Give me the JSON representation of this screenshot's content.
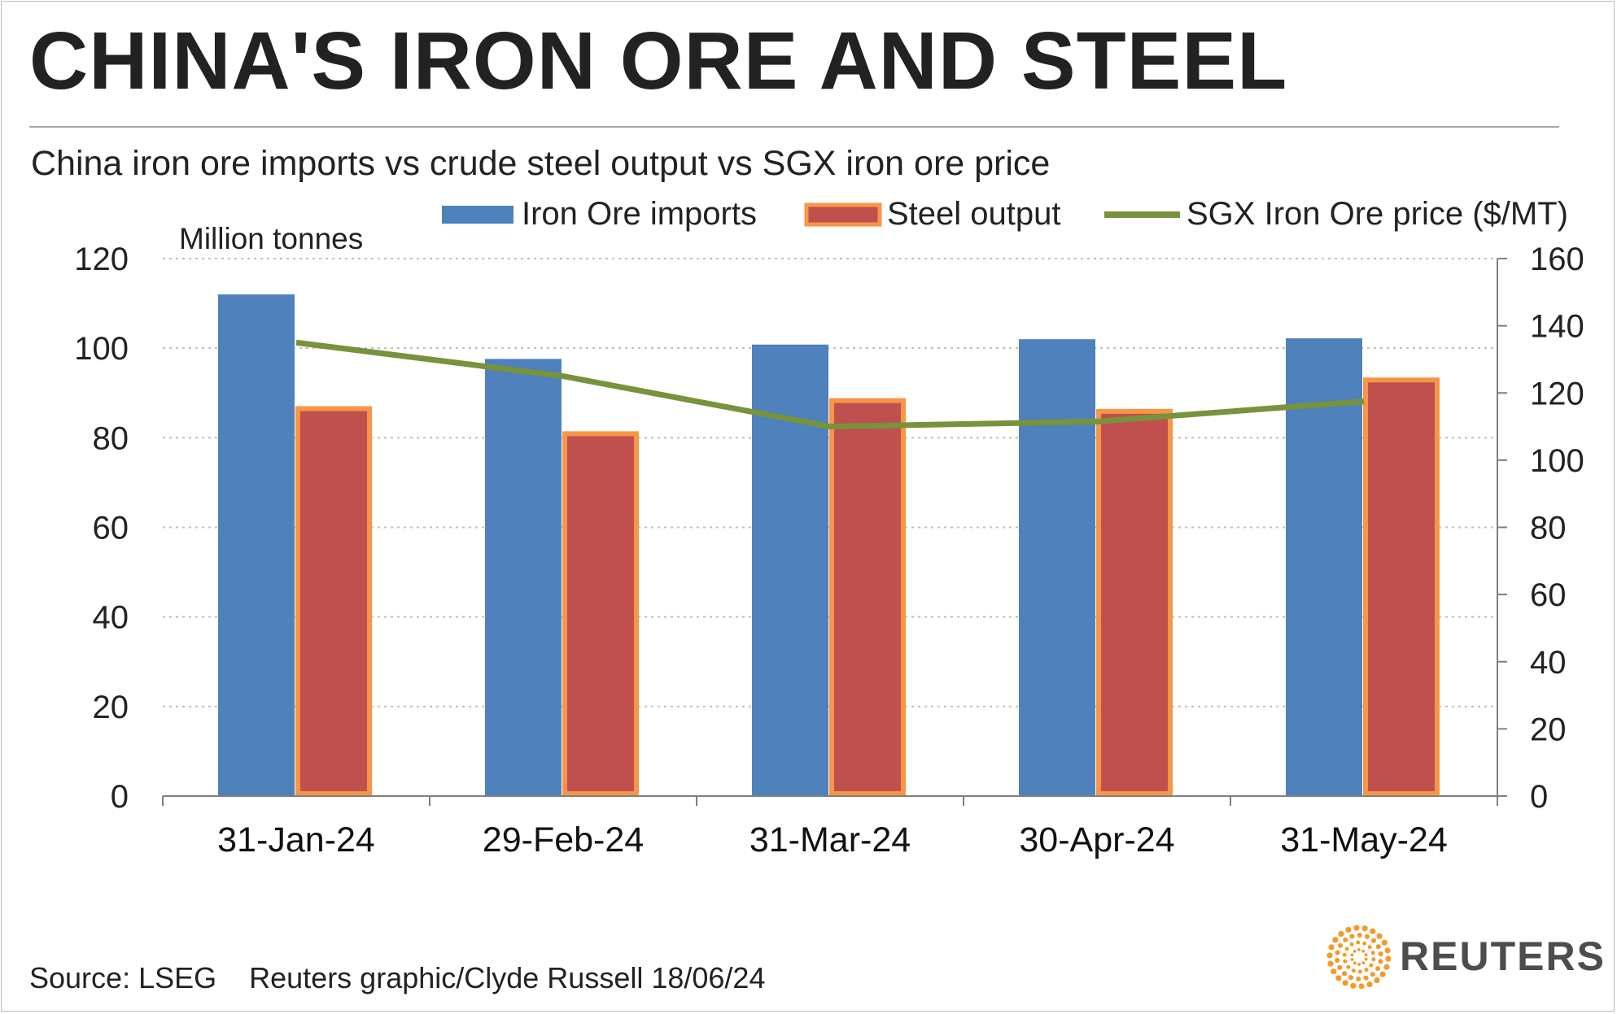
{
  "header": {
    "title": "CHINA'S IRON ORE AND STEEL",
    "subtitle": "China iron ore imports vs crude steel output vs SGX iron ore price"
  },
  "footer": {
    "source": "Source: LSEG    Reuters graphic/Clyde Russell 18/06/24",
    "brand": "REUTERS"
  },
  "colors": {
    "imports": "#4f81bd",
    "steel_fill": "#c0504d",
    "steel_border": "#f79646",
    "price": "#77933c",
    "grid": "#bfbfbf",
    "axis": "#7f7f7f"
  },
  "icons": {
    "logo": "reuters-dots-logo-icon"
  },
  "chart_data": {
    "type": "bar",
    "title": "China iron ore imports vs crude steel output vs SGX iron ore price",
    "categories": [
      "31-Jan-24",
      "29-Feb-24",
      "31-Mar-24",
      "30-Apr-24",
      "31-May-24"
    ],
    "unit_label": "Million tonnes",
    "left_axis": {
      "range": [
        0,
        120
      ],
      "ticks": [
        "0",
        "20",
        "40",
        "60",
        "80",
        "100",
        "120"
      ]
    },
    "right_axis": {
      "range": [
        0,
        160
      ],
      "ticks": [
        "0",
        "20",
        "40",
        "60",
        "80",
        "100",
        "120",
        "140",
        "160"
      ]
    },
    "grid": true,
    "legend_position": "top",
    "series": [
      {
        "name": "Iron Ore imports",
        "type": "bar",
        "axis": "left",
        "values": [
          112,
          97.6,
          100.8,
          102,
          102.2
        ]
      },
      {
        "name": "Steel output",
        "type": "bar",
        "axis": "left",
        "values": [
          86.5,
          80.9,
          88.3,
          85.9,
          92.9
        ]
      },
      {
        "name": "SGX Iron Ore price ($/MT)",
        "type": "line",
        "axis": "right",
        "values": [
          135,
          125,
          110,
          111.5,
          117.5
        ]
      }
    ]
  }
}
